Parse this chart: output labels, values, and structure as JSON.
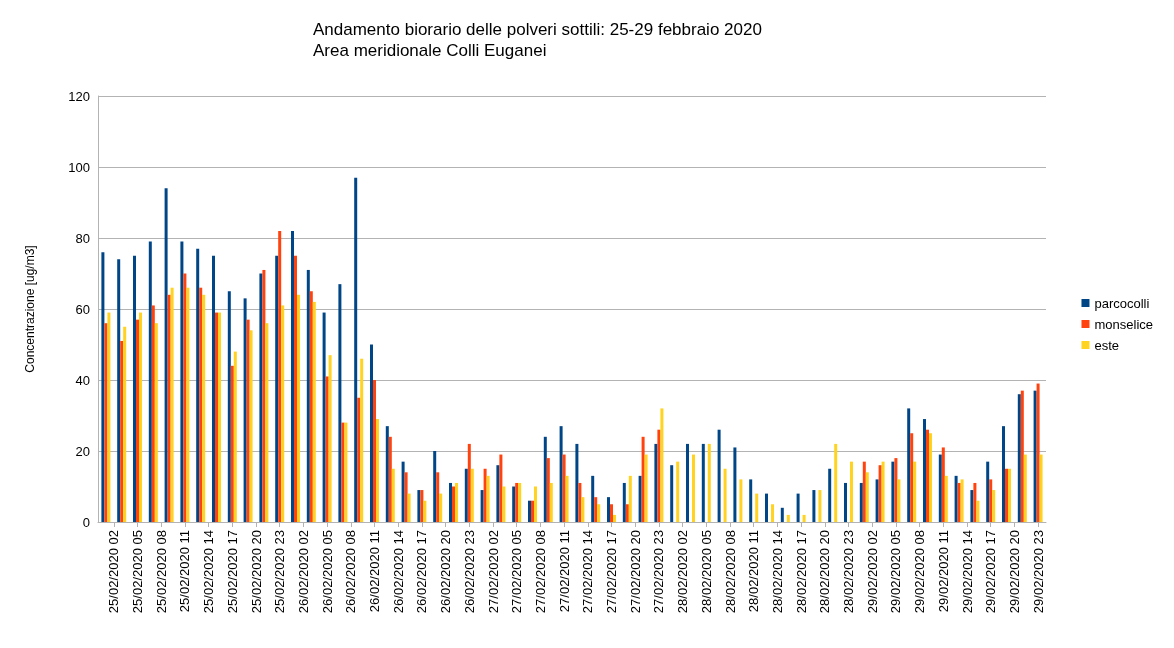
{
  "chart_data": {
    "type": "bar",
    "title": "Andamento biorario delle polveri sottili: 25-29 febbraio 2020",
    "subtitle": "Area meridionale Colli Euganei",
    "ylabel": "Concentrazione [ug/m3]",
    "x": [
      "2020-02-25T01:00",
      "2020-02-25T03:00",
      "2020-02-25T05:00",
      "2020-02-25T07:00",
      "2020-02-25T09:00",
      "2020-02-25T11:00",
      "2020-02-25T13:00",
      "2020-02-25T15:00",
      "2020-02-25T17:00",
      "2020-02-25T19:00",
      "2020-02-25T21:00",
      "2020-02-25T23:00",
      "2020-02-26T01:00",
      "2020-02-26T03:00",
      "2020-02-26T05:00",
      "2020-02-26T07:00",
      "2020-02-26T09:00",
      "2020-02-26T11:00",
      "2020-02-26T13:00",
      "2020-02-26T15:00",
      "2020-02-26T17:00",
      "2020-02-26T19:00",
      "2020-02-26T21:00",
      "2020-02-26T23:00",
      "2020-02-27T01:00",
      "2020-02-27T03:00",
      "2020-02-27T05:00",
      "2020-02-27T07:00",
      "2020-02-27T09:00",
      "2020-02-27T11:00",
      "2020-02-27T13:00",
      "2020-02-27T15:00",
      "2020-02-27T17:00",
      "2020-02-27T19:00",
      "2020-02-27T21:00",
      "2020-02-27T23:00",
      "2020-02-28T01:00",
      "2020-02-28T03:00",
      "2020-02-28T05:00",
      "2020-02-28T07:00",
      "2020-02-28T09:00",
      "2020-02-28T11:00",
      "2020-02-28T13:00",
      "2020-02-28T15:00",
      "2020-02-28T17:00",
      "2020-02-28T19:00",
      "2020-02-28T21:00",
      "2020-02-28T23:00",
      "2020-02-29T01:00",
      "2020-02-29T03:00",
      "2020-02-29T05:00",
      "2020-02-29T07:00",
      "2020-02-29T09:00",
      "2020-02-29T11:00",
      "2020-02-29T13:00",
      "2020-02-29T15:00",
      "2020-02-29T17:00",
      "2020-02-29T19:00",
      "2020-02-29T21:00",
      "2020-02-29T23:00"
    ],
    "series": [
      {
        "name": "parcocolli",
        "color": "#004586",
        "values": [
          76,
          74,
          75,
          79,
          94,
          79,
          77,
          75,
          65,
          63,
          70,
          75,
          82,
          71,
          59,
          67,
          97,
          50,
          27,
          17,
          9,
          20,
          11,
          15,
          9,
          16,
          10,
          6,
          24,
          27,
          22,
          13,
          7,
          11,
          13,
          22,
          16,
          22,
          22,
          26,
          21,
          12,
          8,
          4,
          8,
          9,
          15,
          11,
          11,
          12,
          17,
          32,
          29,
          19,
          13,
          9,
          17,
          27,
          36,
          37
        ]
      },
      {
        "name": "monselice",
        "color": "#ff420e",
        "values": [
          56,
          51,
          57,
          61,
          64,
          70,
          66,
          59,
          44,
          57,
          71,
          82,
          75,
          65,
          41,
          28,
          35,
          40,
          24,
          14,
          9,
          14,
          10,
          22,
          15,
          19,
          11,
          6,
          18,
          19,
          11,
          7,
          5,
          5,
          24,
          26,
          null,
          null,
          null,
          null,
          null,
          null,
          null,
          null,
          null,
          null,
          null,
          null,
          17,
          16,
          18,
          25,
          26,
          21,
          11,
          11,
          12,
          15,
          37,
          39
        ]
      },
      {
        "name": "este",
        "color": "#ffd320",
        "values": [
          59,
          55,
          59,
          56,
          66,
          66,
          64,
          59,
          48,
          54,
          56,
          61,
          64,
          62,
          47,
          28,
          46,
          29,
          15,
          8,
          6,
          8,
          11,
          15,
          13,
          10,
          11,
          10,
          11,
          13,
          7,
          5,
          2,
          13,
          19,
          32,
          17,
          19,
          22,
          15,
          12,
          8,
          5,
          2,
          2,
          9,
          22,
          17,
          14,
          17,
          12,
          17,
          25,
          13,
          12,
          6,
          9,
          15,
          19,
          19
        ]
      }
    ],
    "xlim": [
      "2020-02-25T00:00",
      "2020-03-01T00:00"
    ],
    "xticks": [
      {
        "value": "2020-02-25T02:00",
        "label": "25/02/2020 02"
      },
      {
        "value": "2020-02-25T05:00",
        "label": "25/02/2020 05"
      },
      {
        "value": "2020-02-25T08:00",
        "label": "25/02/2020 08"
      },
      {
        "value": "2020-02-25T11:00",
        "label": "25/02/2020 11"
      },
      {
        "value": "2020-02-25T14:00",
        "label": "25/02/2020 14"
      },
      {
        "value": "2020-02-25T17:00",
        "label": "25/02/2020 17"
      },
      {
        "value": "2020-02-25T20:00",
        "label": "25/02/2020 20"
      },
      {
        "value": "2020-02-25T23:00",
        "label": "25/02/2020 23"
      },
      {
        "value": "2020-02-26T02:00",
        "label": "26/02/2020 02"
      },
      {
        "value": "2020-02-26T05:00",
        "label": "26/02/2020 05"
      },
      {
        "value": "2020-02-26T08:00",
        "label": "26/02/2020 08"
      },
      {
        "value": "2020-02-26T11:00",
        "label": "26/02/2020 11"
      },
      {
        "value": "2020-02-26T14:00",
        "label": "26/02/2020 14"
      },
      {
        "value": "2020-02-26T17:00",
        "label": "26/02/2020 17"
      },
      {
        "value": "2020-02-26T20:00",
        "label": "26/02/2020 20"
      },
      {
        "value": "2020-02-26T23:00",
        "label": "26/02/2020 23"
      },
      {
        "value": "2020-02-27T02:00",
        "label": "27/02/2020 02"
      },
      {
        "value": "2020-02-27T05:00",
        "label": "27/02/2020 05"
      },
      {
        "value": "2020-02-27T08:00",
        "label": "27/02/2020 08"
      },
      {
        "value": "2020-02-27T11:00",
        "label": "27/02/2020 11"
      },
      {
        "value": "2020-02-27T14:00",
        "label": "27/02/2020 14"
      },
      {
        "value": "2020-02-27T17:00",
        "label": "27/02/2020 17"
      },
      {
        "value": "2020-02-27T20:00",
        "label": "27/02/2020 20"
      },
      {
        "value": "2020-02-27T23:00",
        "label": "27/02/2020 23"
      },
      {
        "value": "2020-02-28T02:00",
        "label": "28/02/2020 02"
      },
      {
        "value": "2020-02-28T05:00",
        "label": "28/02/2020 05"
      },
      {
        "value": "2020-02-28T08:00",
        "label": "28/02/2020 08"
      },
      {
        "value": "2020-02-28T11:00",
        "label": "28/02/2020 11"
      },
      {
        "value": "2020-02-28T14:00",
        "label": "28/02/2020 14"
      },
      {
        "value": "2020-02-28T17:00",
        "label": "28/02/2020 17"
      },
      {
        "value": "2020-02-28T20:00",
        "label": "28/02/2020 20"
      },
      {
        "value": "2020-02-28T23:00",
        "label": "28/02/2020 23"
      },
      {
        "value": "2020-02-29T02:00",
        "label": "29/02/2020 02"
      },
      {
        "value": "2020-02-29T05:00",
        "label": "29/02/2020 05"
      },
      {
        "value": "2020-02-29T08:00",
        "label": "29/02/2020 08"
      },
      {
        "value": "2020-02-29T11:00",
        "label": "29/02/2020 11"
      },
      {
        "value": "2020-02-29T14:00",
        "label": "29/02/2020 14"
      },
      {
        "value": "2020-02-29T17:00",
        "label": "29/02/2020 17"
      },
      {
        "value": "2020-02-29T20:00",
        "label": "29/02/2020 20"
      },
      {
        "value": "2020-02-29T23:00",
        "label": "29/02/2020 23"
      }
    ],
    "ylim": [
      0,
      120
    ],
    "yticks": [
      0,
      20,
      40,
      60,
      80,
      100,
      120
    ],
    "grid": "y",
    "legend": "right"
  }
}
